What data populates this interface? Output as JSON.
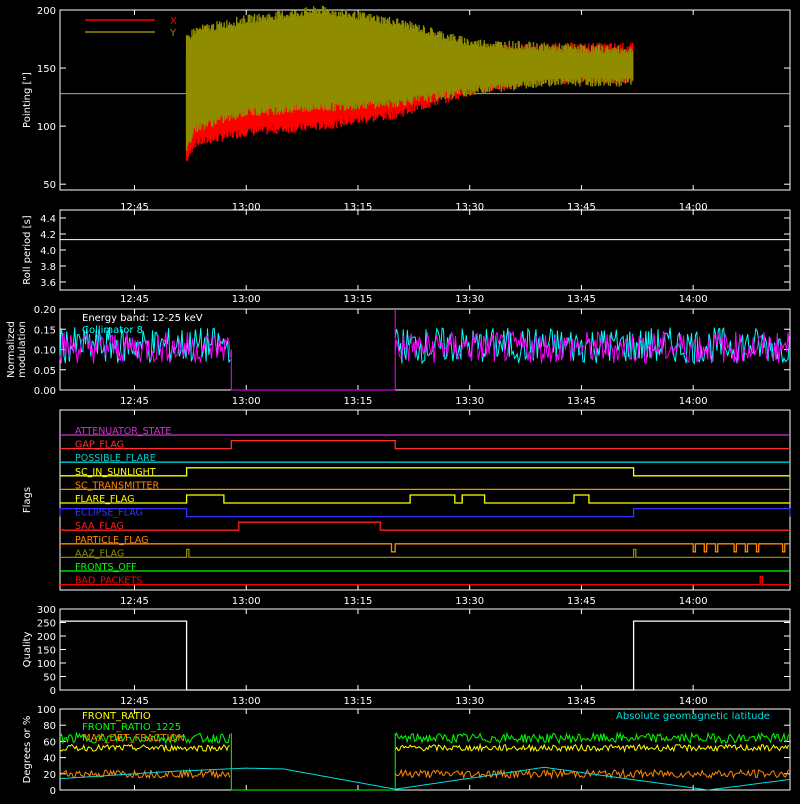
{
  "time_ticks": [
    "12:45",
    "13:00",
    "13:15",
    "13:30",
    "13:45",
    "14:00"
  ],
  "chart_data": [
    {
      "type": "line",
      "ylabel": "Pointing [\"]",
      "ylim": [
        45,
        200
      ],
      "yticks": [
        "50",
        "100",
        "150",
        "200"
      ],
      "legend": [
        {
          "name": "X",
          "color": "#ff0000"
        },
        {
          "name": "Y",
          "color": "#8f8c00"
        }
      ],
      "reference_line": 128,
      "series": [
        {
          "name": "X",
          "color": "#ff0000",
          "time": [
            "12:52",
            "12:53",
            "13:00",
            "13:10",
            "13:20",
            "13:30",
            "13:40",
            "13:52"
          ],
          "low": [
            70,
            85,
            95,
            100,
            110,
            130,
            140,
            140
          ],
          "high": [
            160,
            160,
            180,
            190,
            185,
            165,
            168,
            168
          ]
        },
        {
          "name": "Y",
          "color": "#8f8c00",
          "time": [
            "12:52",
            "12:53",
            "13:00",
            "13:10",
            "13:20",
            "13:30",
            "13:40",
            "13:52"
          ],
          "low": [
            80,
            98,
            112,
            116,
            120,
            130,
            138,
            138
          ],
          "high": [
            175,
            182,
            192,
            200,
            190,
            172,
            168,
            165
          ]
        }
      ]
    },
    {
      "type": "line",
      "ylabel": "Roll period [s]",
      "ylim": [
        3.5,
        4.5
      ],
      "yticks": [
        "3.6",
        "3.8",
        "4.0",
        "4.2",
        "4.4"
      ],
      "series": [
        {
          "name": "Roll period",
          "time": [
            "12:35",
            "14:13"
          ],
          "values": [
            4.13,
            4.13
          ]
        }
      ]
    },
    {
      "type": "line",
      "ylabel": "Normalized modulation",
      "ylim": [
        0,
        0.2
      ],
      "yticks": [
        "0.00",
        "0.05",
        "0.10",
        "0.15",
        "0.20"
      ],
      "annotations": [
        "Energy band: 12-25 keV",
        "Collimator 8"
      ],
      "series": [
        {
          "name": "Collimator 8",
          "color": "#00ffff",
          "segments": [
            [
              "12:35",
              "12:58"
            ],
            [
              "13:20",
              "14:13"
            ]
          ],
          "mean": 0.11,
          "spread": 0.045
        },
        {
          "name": "Modulation",
          "color": "#ff00ff",
          "segments": [
            [
              "12:35",
              "12:58"
            ],
            [
              "13:20",
              "14:13"
            ]
          ],
          "mean": 0.105,
          "spread": 0.04
        }
      ]
    },
    {
      "type": "line",
      "ylabel": "Flags",
      "flags": [
        {
          "label": "ATTENUATOR_STATE",
          "color": "#cc33cc",
          "high": []
        },
        {
          "label": "GAP_FLAG",
          "color": "#ff3030",
          "high": [
            [
              "12:58",
              "13:20"
            ]
          ]
        },
        {
          "label": "POSSIBLE_FLARE",
          "color": "#00cccc",
          "high": []
        },
        {
          "label": "SC_IN_SUNLIGHT",
          "color": "#ffff00",
          "high": [
            [
              "12:52",
              "13:52"
            ]
          ]
        },
        {
          "label": "SC_TRANSMITTER",
          "color": "#ff8800",
          "high": []
        },
        {
          "label": "FLARE_FLAG",
          "color": "#ffff00",
          "high": [
            [
              "12:52",
              "12:57"
            ],
            [
              "13:22",
              "13:28"
            ],
            [
              "13:29",
              "13:32"
            ],
            [
              "13:44",
              "13:46"
            ]
          ]
        },
        {
          "label": "ECLIPSE_FLAG",
          "color": "#3333ff",
          "high": [
            [
              "12:35",
              "12:52"
            ],
            [
              "13:52",
              "14:13"
            ]
          ]
        },
        {
          "label": "SAA_FLAG",
          "color": "#ff2020",
          "high": [
            [
              "12:59",
              "13:18"
            ]
          ]
        },
        {
          "label": "PARTICLE_FLAG",
          "color": "#ff8800",
          "low": true,
          "high": [
            [
              "13:19.5",
              "13:20"
            ],
            [
              "14:00",
              "14:00.3"
            ],
            [
              "14:01.5",
              "14:01.8"
            ],
            [
              "14:03",
              "14:03.3"
            ],
            [
              "14:05.5",
              "14:05.8"
            ],
            [
              "14:07",
              "14:07.3"
            ],
            [
              "14:08.5",
              "14:08.8"
            ],
            [
              "14:12",
              "14:12.3"
            ]
          ]
        },
        {
          "label": "AAZ_FLAG",
          "color": "#8f8c00",
          "high": [
            [
              "12:52",
              "12:52.3"
            ],
            [
              "13:52",
              "13:52.3"
            ]
          ]
        },
        {
          "label": "FRONTS_OFF",
          "color": "#00ff00",
          "high": []
        },
        {
          "label": "BAD_PACKETS",
          "color": "#ff0000",
          "high": [
            [
              "14:09",
              "14:09.3"
            ]
          ]
        }
      ]
    },
    {
      "type": "line",
      "ylabel": "Quality",
      "ylim": [
        0,
        300
      ],
      "yticks": [
        "0",
        "50",
        "100",
        "150",
        "200",
        "250",
        "300"
      ],
      "series": [
        {
          "name": "Quality",
          "time": [
            "12:35",
            "12:52",
            "12:52",
            "13:52",
            "13:52",
            "14:13"
          ],
          "values": [
            255,
            255,
            0,
            0,
            255,
            255
          ]
        }
      ]
    },
    {
      "type": "line",
      "ylabel": "Degrees or %",
      "ylim": [
        0,
        100
      ],
      "yticks": [
        "0",
        "20",
        "40",
        "60",
        "80",
        "100"
      ],
      "annotations": [
        "Absolute geomagnetic latitude"
      ],
      "series": [
        {
          "name": "FRONT_RATIO",
          "color": "#ffff00",
          "segments": [
            [
              "12:35",
              "12:58"
            ],
            [
              "13:20",
              "14:13"
            ]
          ],
          "mean": 52,
          "spread": 4
        },
        {
          "name": "FRONT_RATIO_1225",
          "color": "#00ff00",
          "segments": [
            [
              "12:35",
              "12:58"
            ],
            [
              "13:20",
              "14:13"
            ]
          ],
          "mean": 64,
          "spread": 6
        },
        {
          "name": "MAX_DET_FRACTION",
          "color": "#ff8800",
          "segments": [
            [
              "12:35",
              "12:58"
            ],
            [
              "13:20",
              "14:13"
            ]
          ],
          "mean": 20,
          "spread": 5
        },
        {
          "name": "Absolute geomagnetic latitude",
          "color": "#00dddd",
          "time": [
            "12:35",
            "12:50",
            "13:00",
            "13:05",
            "13:20",
            "13:40",
            "14:02",
            "14:13"
          ],
          "values": [
            14,
            23,
            27,
            26,
            1,
            28,
            0,
            13
          ]
        }
      ]
    }
  ]
}
